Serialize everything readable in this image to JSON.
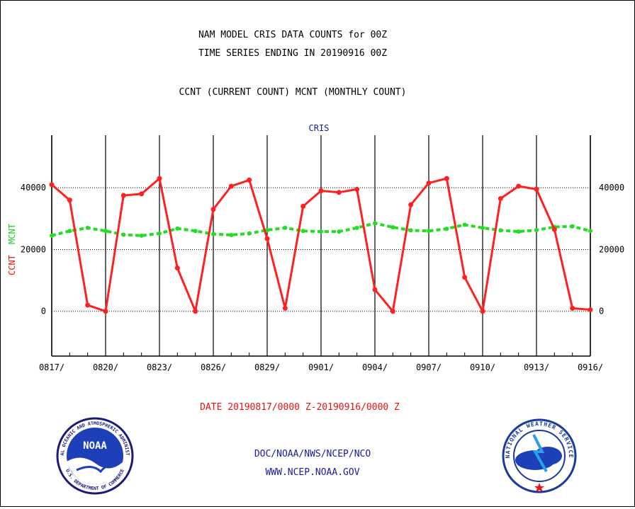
{
  "header": {
    "title_line1": "NAM MODEL CRIS DATA COUNTS for 00Z",
    "title_line2": "TIME SERIES ENDING IN 20190916 00Z",
    "subtitle": "CCNT (CURRENT COUNT) MCNT (MONTHLY COUNT)"
  },
  "footer": {
    "date_range": "DATE 20190817/0000 Z-20190916/0000 Z",
    "org": "DOC/NOAA/NWS/NCEP/NCO",
    "url": "WWW.NCEP.NOAA.GOV"
  },
  "logos": {
    "noaa_text": "NOAA",
    "noaa_ring_top": "NATIONAL OCEANIC AND ATMOSPHERIC ADMINISTRATION",
    "noaa_ring_bottom": "U.S. DEPARTMENT OF COMMERCE",
    "nws_ring": "NATIONAL WEATHER SERVICE"
  },
  "colors": {
    "ccnt": "#ff2020",
    "mcnt": "#22dd22",
    "text_blue": "#1a1aa0",
    "text_red": "#ee1111",
    "axis": "#000000"
  },
  "chart_data": {
    "type": "line",
    "panel_label": "CRIS",
    "y_label_left_red": "CCNT",
    "y_label_left_green": "MCNT",
    "ylim": [
      -14500,
      57000
    ],
    "y_ticks": [
      0,
      20000,
      40000
    ],
    "y_tick_labels": [
      "0",
      "20000",
      "40000"
    ],
    "x_tick_labels": [
      "0817/",
      "0820/",
      "0823/",
      "0826/",
      "0829/",
      "0901/",
      "0904/",
      "0907/",
      "0910/",
      "0913/",
      "0916/"
    ],
    "x_days": [
      "0817",
      "0818",
      "0819",
      "0820",
      "0821",
      "0822",
      "0823",
      "0824",
      "0825",
      "0826",
      "0827",
      "0828",
      "0829",
      "0830",
      "0831",
      "0901",
      "0902",
      "0903",
      "0904",
      "0905",
      "0906",
      "0907",
      "0908",
      "0909",
      "0910",
      "0911",
      "0912",
      "0913",
      "0914",
      "0915",
      "0916"
    ],
    "grid": true,
    "series": [
      {
        "name": "CCNT",
        "color": "#ff2020",
        "values": [
          41000,
          36000,
          2000,
          0,
          37500,
          38000,
          43000,
          14000,
          0,
          33000,
          40500,
          42500,
          23500,
          1000,
          34000,
          39000,
          38500,
          39500,
          7000,
          0,
          34500,
          41500,
          43000,
          11000,
          0,
          36500,
          40500,
          39500,
          26500,
          1000,
          500
        ]
      },
      {
        "name": "MCNT",
        "color": "#22dd22",
        "values": [
          24500,
          26000,
          27000,
          26000,
          24800,
          24500,
          25200,
          26800,
          26000,
          25000,
          24700,
          25200,
          26300,
          27000,
          26000,
          25800,
          25800,
          27000,
          28500,
          27200,
          26200,
          26000,
          26700,
          28000,
          27000,
          26200,
          25800,
          26300,
          27300,
          27500,
          26000
        ]
      }
    ]
  }
}
